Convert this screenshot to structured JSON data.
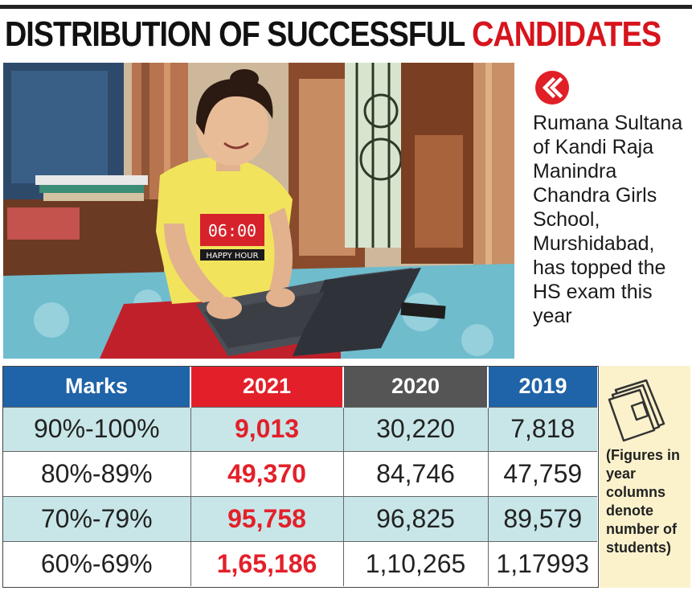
{
  "headline": {
    "black": "DISTRIBUTION OF SUCCESSFUL ",
    "red": "CANDIDATES"
  },
  "photo": {
    "shirt_text_1": "06:00",
    "shirt_text_2": "HAPPY HOUR"
  },
  "caption": "Rumana Sultana of Kandi Raja Manindra Chandra Girls School, Murshidabad, has topped the HS exam this year",
  "icons": {
    "badge": "double-chevron-left-icon",
    "note": "stack-of-papers-icon"
  },
  "colors": {
    "accent_red": "#e3202a",
    "header_blue": "#1f63a8",
    "header_grey": "#555555",
    "row_alt": "#c8e6e8",
    "note_bg": "#fbf2cc"
  },
  "chart_data": {
    "type": "table",
    "columns": [
      "Marks",
      "2021",
      "2020",
      "2019"
    ],
    "rows": [
      [
        "90%-100%",
        "9,013",
        "30,220",
        "7,818"
      ],
      [
        "80%-89%",
        "49,370",
        "84,746",
        "47,759"
      ],
      [
        "70%-79%",
        "95,758",
        "96,825",
        "89,579"
      ],
      [
        "60%-69%",
        "1,65,186",
        "1,10,265",
        "1,17993"
      ]
    ]
  },
  "note": "(Figures in year columns denote number of students)"
}
